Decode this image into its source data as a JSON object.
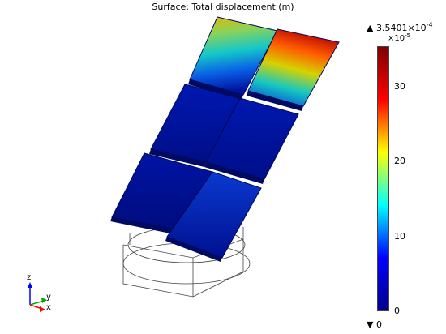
{
  "plot": {
    "title": "Surface: Total displacement (m)"
  },
  "colorbar": {
    "max_prefix": "▲ 3.5401×10",
    "max_exp": "-4",
    "scale_prefix": "×10",
    "scale_exp": "-5",
    "min_label": "▼ 0",
    "ticks": [
      {
        "label": "30",
        "value": 30
      },
      {
        "label": "20",
        "value": 20
      },
      {
        "label": "10",
        "value": 10
      },
      {
        "label": "0",
        "value": 0
      }
    ],
    "max_value": 35.401,
    "colormap": "rainbow",
    "colors": [
      "#7f0000",
      "#ff0000",
      "#ffff00",
      "#00ffff",
      "#0000ff",
      "#00008b"
    ]
  },
  "axes": {
    "z": "z",
    "y": "y",
    "x": "x",
    "z_color": "#0000ff",
    "y_color": "#00aa00",
    "x_color": "#ff0000"
  },
  "model": {
    "panel_colors": {
      "high": "#b30000",
      "mid": "#19c8c8",
      "low": "#001a9a",
      "dark": "#001066"
    }
  }
}
